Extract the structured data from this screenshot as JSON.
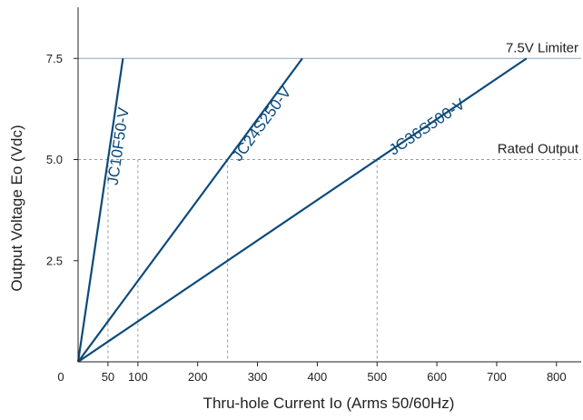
{
  "chart_data": {
    "type": "line",
    "title": "",
    "xlabel": "Thru-hole Current Io (Arms 50/60Hz)",
    "ylabel": "Output Voltage Eo (Vdc)",
    "xlim": [
      0,
      840
    ],
    "ylim": [
      0,
      9.0
    ],
    "x_ticks": [
      0,
      50,
      100,
      200,
      300,
      400,
      500,
      600,
      700,
      800
    ],
    "y_ticks": [
      2.5,
      5.0,
      7.5
    ],
    "y_tick_labels": [
      "2.5",
      "5.0",
      "7.5"
    ],
    "grid": false,
    "line_color": "#0c4a7a",
    "reference_lines": [
      {
        "y": 7.5,
        "label": "7.5V Limiter",
        "style": "solid",
        "color": "#8aa6c4"
      },
      {
        "y": 5.0,
        "label": "Rated Output",
        "style": "dashed",
        "color": "#9a9a9a"
      }
    ],
    "drop_lines": [
      {
        "x": 50,
        "y": 5.0
      },
      {
        "x": 100,
        "y": 5.0
      },
      {
        "x": 250,
        "y": 5.0
      },
      {
        "x": 500,
        "y": 5.0
      }
    ],
    "series": [
      {
        "name": "JC10F50-V",
        "x": [
          0,
          75
        ],
        "y": [
          0,
          7.5
        ]
      },
      {
        "name": "JC24S250-V",
        "x": [
          0,
          375
        ],
        "y": [
          0,
          7.5
        ]
      },
      {
        "name": "JC36S500-V",
        "x": [
          0,
          750
        ],
        "y": [
          0,
          7.5
        ]
      }
    ]
  }
}
